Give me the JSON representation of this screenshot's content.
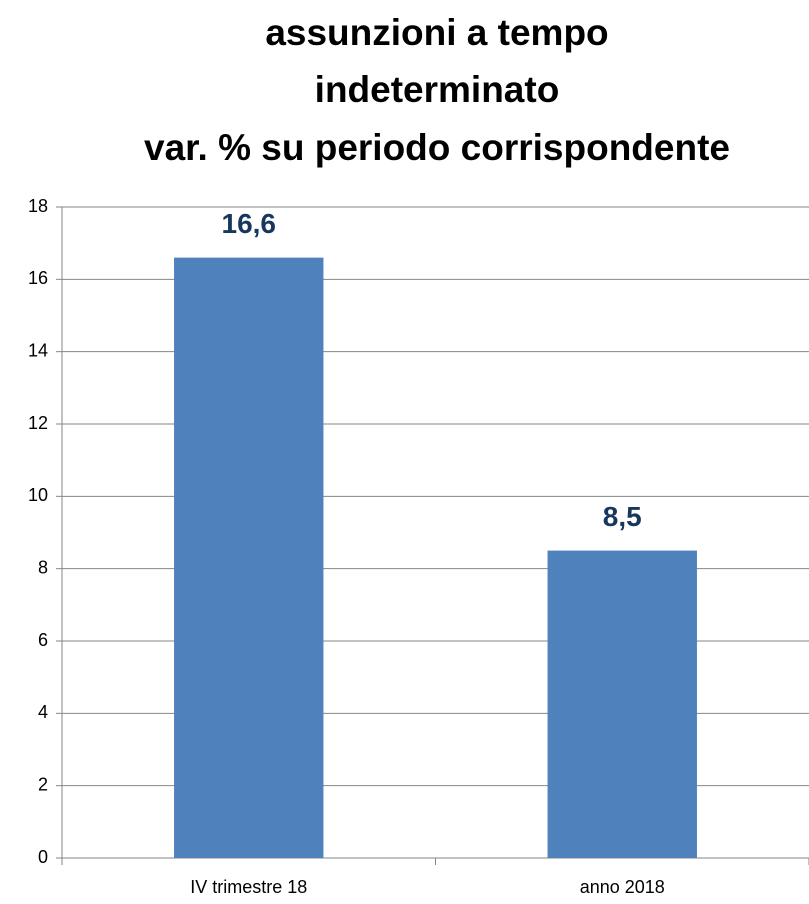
{
  "chart_data": {
    "type": "bar",
    "title": [
      "assunzioni a tempo",
      "indeterminato",
      "var. % su periodo corrispondente"
    ],
    "categories": [
      "IV trimestre 18",
      "anno 2018"
    ],
    "values": [
      16.6,
      8.5
    ],
    "value_labels": [
      "16,6",
      "8,5"
    ],
    "color": "#4f81bd",
    "ylim": [
      0,
      18
    ],
    "yticks": [
      0,
      2,
      4,
      6,
      8,
      10,
      12,
      14,
      16,
      18
    ],
    "grid": true
  }
}
